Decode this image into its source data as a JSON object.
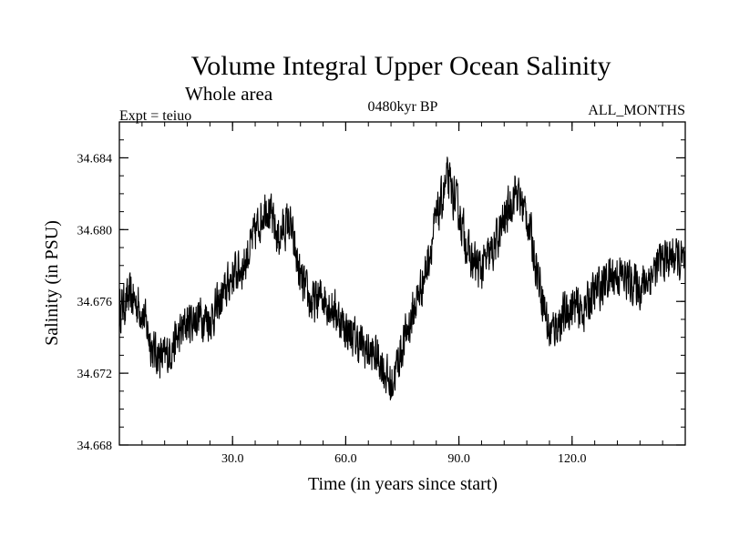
{
  "chart_data": {
    "type": "line",
    "title": "Volume Integral Upper Ocean Salinity",
    "subtitle": "Whole area",
    "left_label": "Expt = teiuo",
    "center_label": "0480kyr BP",
    "right_label": "ALL_MONTHS",
    "xlabel": "Time (in years since start)",
    "ylabel": "Salinity (in PSU)",
    "xlim": [
      0,
      150
    ],
    "ylim": [
      34.668,
      34.686
    ],
    "x_ticks": [
      30,
      60,
      90,
      120
    ],
    "x_tick_labels": [
      "30.0",
      "60.0",
      "90.0",
      "120.0"
    ],
    "y_ticks": [
      34.668,
      34.672,
      34.676,
      34.68,
      34.684
    ],
    "y_tick_labels": [
      "34.668",
      "34.672",
      "34.676",
      "34.680",
      "34.684"
    ],
    "series": [
      {
        "name": "salinity",
        "x": [
          0,
          3,
          6,
          9,
          12,
          15,
          18,
          21,
          24,
          27,
          30,
          33,
          36,
          39,
          42,
          45,
          48,
          51,
          54,
          57,
          60,
          63,
          66,
          69,
          72,
          75,
          78,
          81,
          84,
          87,
          90,
          93,
          96,
          99,
          102,
          105,
          108,
          111,
          114,
          117,
          120,
          123,
          126,
          129,
          132,
          135,
          138,
          141,
          144,
          147,
          150
        ],
        "values": [
          34.6755,
          34.6763,
          34.6755,
          34.6732,
          34.6728,
          34.6738,
          34.6748,
          34.6752,
          34.675,
          34.676,
          34.6775,
          34.678,
          34.6798,
          34.6815,
          34.6795,
          34.6805,
          34.6772,
          34.6758,
          34.6763,
          34.6755,
          34.6745,
          34.6738,
          34.6732,
          34.6728,
          34.6712,
          34.6735,
          34.6755,
          34.6775,
          34.6805,
          34.6828,
          34.681,
          34.6783,
          34.6778,
          34.6788,
          34.6805,
          34.6822,
          34.6808,
          34.6775,
          34.6742,
          34.675,
          34.6757,
          34.6755,
          34.6765,
          34.6772,
          34.6775,
          34.6772,
          34.6768,
          34.6775,
          34.6783,
          34.6785,
          34.678
        ]
      }
    ]
  }
}
